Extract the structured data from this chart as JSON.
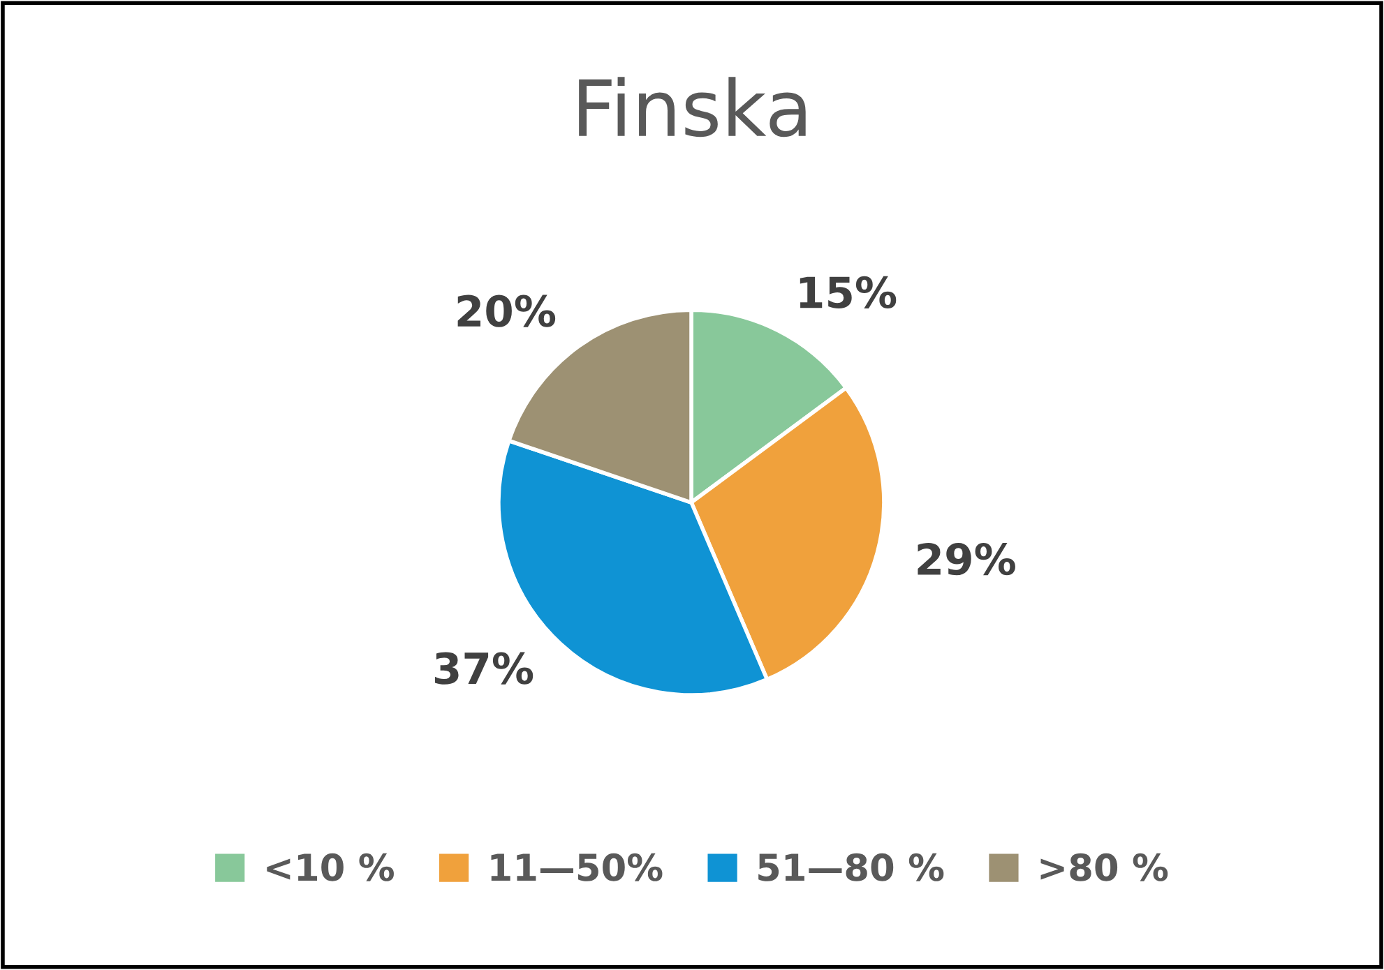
{
  "chart_data": {
    "type": "pie",
    "title": "Finska",
    "categories": [
      "<10 %",
      "11—50%",
      "51—80 %",
      ">80 %"
    ],
    "values": [
      15,
      29,
      37,
      20
    ],
    "value_labels": [
      "15%",
      "29%",
      "37%",
      "20%"
    ],
    "colors": [
      "#88c89a",
      "#f0a13c",
      "#0f93d4",
      "#9d9173"
    ],
    "legend": "bottom"
  }
}
